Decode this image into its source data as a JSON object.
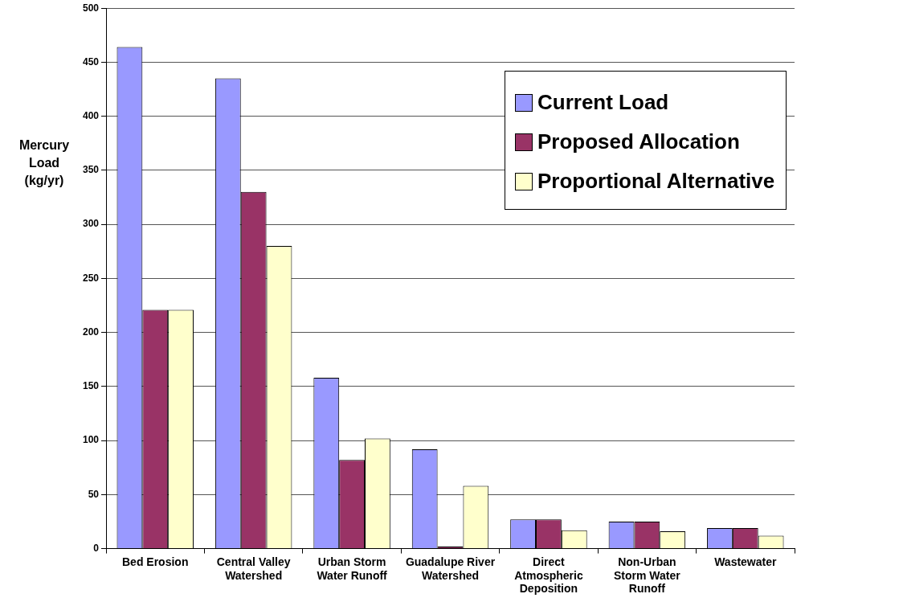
{
  "chart_data": {
    "type": "bar",
    "ylabel": "Mercury Load (kg/yr)",
    "categories": [
      "Bed Erosion",
      "Central Valley Watershed",
      "Urban Storm Water Runoff",
      "Guadalupe River Watershed",
      "Direct Atmospheric Deposition",
      "Non-Urban Storm Water Runoff",
      "Wastewater"
    ],
    "series": [
      {
        "name": "Current Load",
        "color": "#9999ff",
        "values": [
          464,
          435,
          158,
          92,
          27,
          25,
          19
        ]
      },
      {
        "name": "Proposed Allocation",
        "color": "#993366",
        "values": [
          221,
          330,
          82,
          2,
          27,
          25,
          19
        ]
      },
      {
        "name": "Proportional Alternative",
        "color": "#ffffcc",
        "values": [
          221,
          280,
          102,
          58,
          17,
          16,
          12
        ]
      }
    ],
    "ylim": [
      0,
      500
    ],
    "yticks": [
      0,
      50,
      100,
      150,
      200,
      250,
      300,
      350,
      400,
      450,
      500
    ],
    "grid": "y",
    "legend": "top right"
  }
}
